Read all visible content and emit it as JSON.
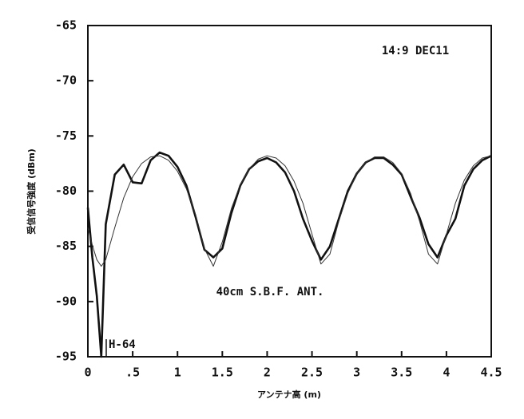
{
  "chart_data": {
    "type": "line",
    "annotations": [
      "14:9  DEC11",
      "40cm S.B.F. ANT.",
      "H-64"
    ],
    "x_label": "アンテナ高 (m)",
    "y_label": "受信信号強度 (dBm)",
    "x": [
      0,
      0.05,
      0.1,
      0.15,
      0.2,
      0.3,
      0.4,
      0.5,
      0.6,
      0.7,
      0.8,
      0.9,
      1.0,
      1.1,
      1.2,
      1.3,
      1.4,
      1.5,
      1.6,
      1.7,
      1.8,
      1.9,
      2.0,
      2.1,
      2.2,
      2.3,
      2.4,
      2.5,
      2.6,
      2.7,
      2.8,
      2.9,
      3.0,
      3.1,
      3.2,
      3.3,
      3.4,
      3.5,
      3.6,
      3.7,
      3.8,
      3.9,
      4.0,
      4.1,
      4.2,
      4.3,
      4.4,
      4.5
    ],
    "series": [
      {
        "color": "#111111",
        "width": 2.6,
        "values": [
          -81.5,
          -86,
          -89.5,
          -95,
          -83,
          -78.5,
          -77.6,
          -79.2,
          -79.3,
          -77.2,
          -76.5,
          -76.8,
          -77.8,
          -79.5,
          -82.3,
          -85.3,
          -86,
          -85.2,
          -82,
          -79.5,
          -78,
          -77.3,
          -77,
          -77.4,
          -78.3,
          -80,
          -82.5,
          -84.5,
          -86.2,
          -85,
          -82.5,
          -80,
          -78.4,
          -77.4,
          -77,
          -77,
          -77.6,
          -78.5,
          -80.5,
          -82.4,
          -84.8,
          -86,
          -84,
          -82.5,
          -79.5,
          -78,
          -77.2,
          -76.8
        ]
      },
      {
        "color": "#333333",
        "width": 1,
        "values": [
          -83.3,
          -84.9,
          -86.2,
          -86.8,
          -86.2,
          -83.3,
          -80.6,
          -78.7,
          -77.5,
          -76.9,
          -76.8,
          -77.2,
          -78.2,
          -79.8,
          -82.1,
          -85.2,
          -86.8,
          -84.6,
          -81.6,
          -79.4,
          -78,
          -77.1,
          -76.8,
          -77,
          -77.7,
          -79.1,
          -81.1,
          -83.9,
          -86.6,
          -85.7,
          -82.7,
          -80.2,
          -78.4,
          -77.4,
          -76.9,
          -76.9,
          -77.4,
          -78.4,
          -80.2,
          -82.7,
          -85.7,
          -86.6,
          -83.9,
          -81.1,
          -79,
          -77.7,
          -77,
          -76.8
        ]
      }
    ],
    "xlim": [
      0,
      4.5
    ],
    "ylim": [
      -95,
      -65
    ],
    "xticks": [
      0,
      {
        "value": 0.5,
        "label": ".5"
      },
      1,
      1.5,
      2,
      2.5,
      3,
      3.5,
      4,
      4.5
    ],
    "yticks": [
      -95,
      -90,
      -85,
      -80,
      -75,
      -70,
      -65
    ]
  }
}
